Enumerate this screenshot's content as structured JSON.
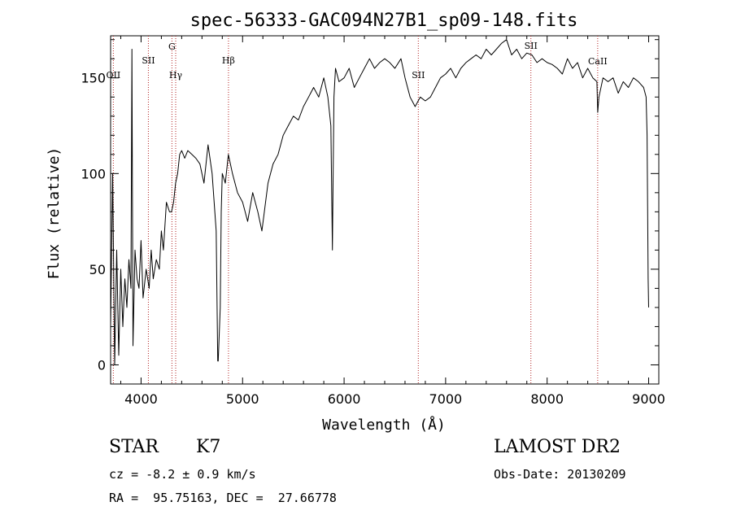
{
  "chart_data": {
    "type": "line",
    "title": "spec-56333-GAC094N27B1_sp09-148.fits",
    "xlabel": "Wavelength (Å)",
    "ylabel": "Flux (relative)",
    "xlim": [
      3700,
      9100
    ],
    "ylim": [
      -10,
      172
    ],
    "xticks": [
      4000,
      5000,
      6000,
      7000,
      8000,
      9000
    ],
    "yticks": [
      0,
      50,
      100,
      150
    ],
    "grid": false,
    "line_color": "#000000",
    "marker_color": "#b22222",
    "spectral_lines": [
      {
        "label": "OII",
        "wavelength": 3727
      },
      {
        "label": "SII",
        "wavelength": 4072
      },
      {
        "label": "G",
        "wavelength": 4304
      },
      {
        "label": "Hγ",
        "wavelength": 4341
      },
      {
        "label": "Hβ",
        "wavelength": 4861
      },
      {
        "label": "SII",
        "wavelength": 6731
      },
      {
        "label": "SII",
        "wavelength": 7840
      },
      {
        "label": "CaII",
        "wavelength": 8498
      }
    ],
    "x": [
      3700,
      3720,
      3740,
      3760,
      3780,
      3800,
      3820,
      3840,
      3860,
      3880,
      3900,
      3910,
      3920,
      3940,
      3960,
      3980,
      4000,
      4020,
      4050,
      4080,
      4100,
      4120,
      4150,
      4180,
      4200,
      4220,
      4250,
      4280,
      4300,
      4320,
      4340,
      4360,
      4380,
      4400,
      4430,
      4460,
      4500,
      4540,
      4580,
      4620,
      4660,
      4700,
      4740,
      4755,
      4760,
      4780,
      4790,
      4800,
      4830,
      4860,
      4880,
      4900,
      4950,
      5000,
      5050,
      5100,
      5150,
      5190,
      5250,
      5300,
      5350,
      5400,
      5450,
      5500,
      5550,
      5600,
      5650,
      5700,
      5750,
      5800,
      5840,
      5870,
      5885,
      5892,
      5900,
      5915,
      5950,
      6000,
      6050,
      6100,
      6150,
      6200,
      6250,
      6300,
      6350,
      6400,
      6450,
      6500,
      6560,
      6600,
      6650,
      6700,
      6750,
      6800,
      6850,
      6900,
      6950,
      7000,
      7050,
      7100,
      7150,
      7200,
      7250,
      7300,
      7350,
      7400,
      7450,
      7500,
      7550,
      7600,
      7650,
      7700,
      7750,
      7800,
      7850,
      7900,
      7950,
      8000,
      8050,
      8100,
      8150,
      8200,
      8250,
      8300,
      8350,
      8400,
      8450,
      8490,
      8498,
      8510,
      8550,
      8600,
      8650,
      8700,
      8750,
      8800,
      8850,
      8900,
      8950,
      8975,
      8985,
      8995,
      9000
    ],
    "y": [
      20,
      100,
      0,
      60,
      5,
      50,
      20,
      45,
      30,
      55,
      40,
      165,
      10,
      60,
      45,
      40,
      65,
      35,
      50,
      40,
      60,
      45,
      55,
      50,
      70,
      60,
      85,
      80,
      80,
      85,
      95,
      100,
      110,
      112,
      108,
      112,
      110,
      108,
      105,
      95,
      115,
      100,
      70,
      2,
      2,
      30,
      80,
      100,
      95,
      110,
      105,
      100,
      90,
      85,
      75,
      90,
      80,
      70,
      95,
      105,
      110,
      120,
      125,
      130,
      128,
      135,
      140,
      145,
      140,
      150,
      140,
      125,
      60,
      100,
      140,
      155,
      148,
      150,
      155,
      145,
      150,
      155,
      160,
      155,
      158,
      160,
      158,
      155,
      160,
      150,
      140,
      135,
      140,
      138,
      140,
      145,
      150,
      152,
      155,
      150,
      155,
      158,
      160,
      162,
      160,
      165,
      162,
      165,
      168,
      170,
      162,
      165,
      160,
      163,
      162,
      158,
      160,
      158,
      157,
      155,
      152,
      160,
      155,
      158,
      150,
      155,
      150,
      148,
      132,
      140,
      150,
      148,
      150,
      142,
      148,
      145,
      150,
      148,
      145,
      140,
      120,
      45,
      30
    ]
  },
  "info": {
    "object_type": "STAR",
    "subclass": "K7",
    "redshift": "cz = -8.2 ± 0.9 km/s",
    "coords": "RA =  95.75163, DEC =  27.66778",
    "survey": "LAMOST DR2",
    "obs_date": "Obs-Date: 20130209"
  }
}
